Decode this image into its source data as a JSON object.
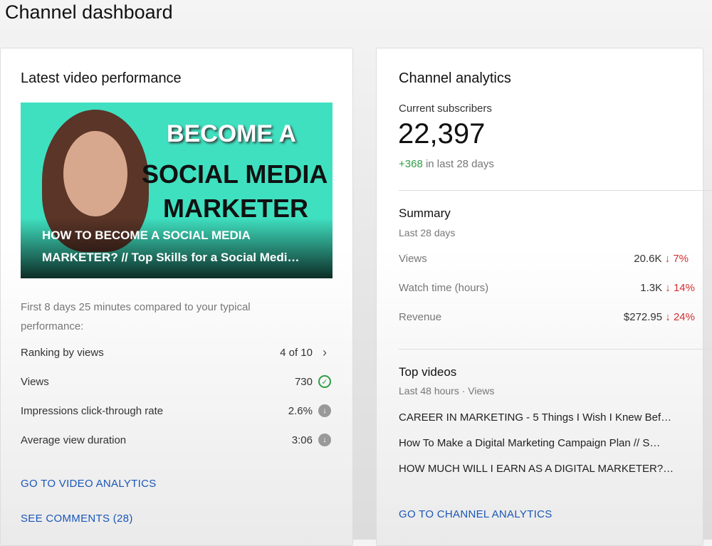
{
  "page_title": "Channel dashboard",
  "latest": {
    "title": "Latest video performance",
    "thumbnail_text": [
      "BECOME A",
      "SOCIAL MEDIA",
      "MARKETER"
    ],
    "video_title": "HOW TO BECOME A SOCIAL MEDIA MARKETER? // Top Skills for a Social Medi…",
    "compare_text": "First 8 days 25 minutes compared to your typical performance:",
    "metrics": [
      {
        "label": "Ranking by views",
        "value": "4 of 10",
        "icon": "chevron-right-icon"
      },
      {
        "label": "Views",
        "value": "730",
        "icon": "check-circle-icon"
      },
      {
        "label": "Impressions click-through rate",
        "value": "2.6%",
        "icon": "arrow-down-circle-icon"
      },
      {
        "label": "Average view duration",
        "value": "3:06",
        "icon": "arrow-down-circle-icon"
      }
    ],
    "link_analytics": "GO TO VIDEO ANALYTICS",
    "link_comments": "SEE COMMENTS (28)"
  },
  "analytics": {
    "title": "Channel analytics",
    "subs_label": "Current subscribers",
    "subs_value": "22,397",
    "subs_delta": "+368",
    "subs_delta_suffix": "in last 28 days",
    "summary_title": "Summary",
    "summary_period": "Last 28 days",
    "summary": [
      {
        "label": "Views",
        "value": "20.6K",
        "change": "7%"
      },
      {
        "label": "Watch time (hours)",
        "value": "1.3K",
        "change": "14%"
      },
      {
        "label": "Revenue",
        "value": "$272.95",
        "change": "24%"
      }
    ],
    "top_title": "Top videos",
    "top_period": "Last 48 hours · Views",
    "top_videos": [
      "CAREER IN MARKETING - 5 Things I Wish I Knew Bef…",
      "How To Make a Digital Marketing Campaign Plan // S…",
      "HOW MUCH WILL I EARN AS A DIGITAL MARKETER?…"
    ],
    "link": "GO TO CHANNEL ANALYTICS"
  },
  "colors": {
    "link": "#1a56b8",
    "positive": "#2e9e47",
    "negative": "#d32f2f"
  }
}
